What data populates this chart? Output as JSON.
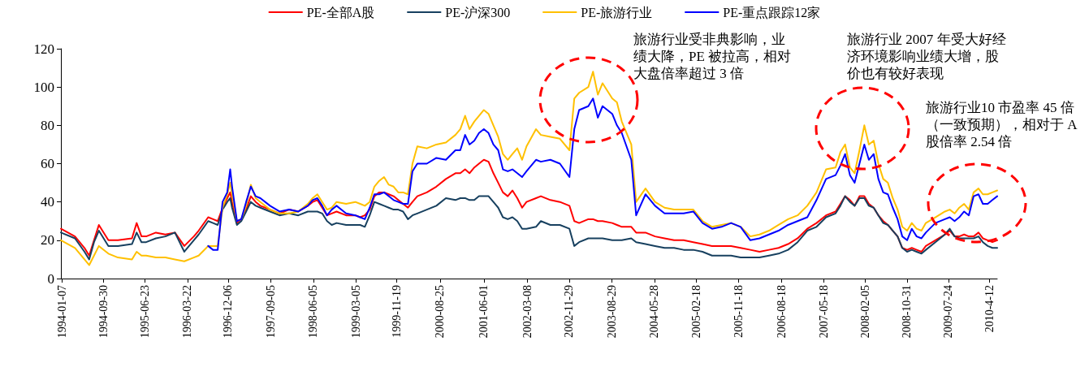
{
  "chart_data": {
    "type": "line",
    "legend": "top",
    "marker": "none",
    "line_style": "solid",
    "grid": false,
    "ylim": [
      0,
      120
    ],
    "yticks": [
      0,
      20,
      40,
      60,
      80,
      100,
      120
    ],
    "xlim": [
      "1994-01-01",
      "2010-06-01"
    ],
    "xticks": [
      "1994-01-07",
      "1994-09-30",
      "1995-06-23",
      "1996-03-22",
      "1996-12-06",
      "1997-09-05",
      "1998-06-05",
      "1999-03-05",
      "1999-11-19",
      "2000-08-25",
      "2001-06-01",
      "2002-03-08",
      "2002-11-29",
      "2003-08-29",
      "2004-05-28",
      "2005-02-18",
      "2005-11-18",
      "2006-08-18",
      "2007-05-18",
      "2008-02-05",
      "2008-10-31",
      "2009-07-24",
      {
        "value": "2010-04-12",
        "label": "2010-4-12"
      }
    ],
    "x": [
      "1994-01",
      "1994-04",
      "1994-06",
      "1994-07",
      "1994-08",
      "1994-09",
      "1994-11",
      "1995-01",
      "1995-04",
      "1995-05",
      "1995-06",
      "1995-07",
      "1995-09",
      "1995-11",
      "1996-01",
      "1996-03",
      "1996-05",
      "1996-06",
      "1996-08",
      "1996-09",
      "1996-10",
      "1996-11",
      "1996-12",
      "1996-12-20",
      "1997-01",
      "1997-02",
      "1997-03",
      "1997-04",
      "1997-05",
      "1997-06",
      "1997-07",
      "1997-09",
      "1997-11",
      "1998-01",
      "1998-03",
      "1998-05",
      "1998-06",
      "1998-07",
      "1998-08",
      "1998-09",
      "1998-10",
      "1998-11",
      "1999-01",
      "1999-03",
      "1999-04",
      "1999-05",
      "1999-06",
      "1999-07",
      "1999-08",
      "1999-09",
      "1999-10",
      "1999-11",
      "1999-12",
      "2000-01",
      "2000-02",
      "2000-03",
      "2000-04",
      "2000-06",
      "2000-08",
      "2000-10",
      "2000-12",
      "2001-01",
      "2001-02",
      "2001-03",
      "2001-04",
      "2001-05",
      "2001-06",
      "2001-07",
      "2001-08",
      "2001-09",
      "2001-10",
      "2001-11",
      "2001-12",
      "2002-01",
      "2002-02",
      "2002-03",
      "2002-05",
      "2002-06",
      "2002-08",
      "2002-10",
      "2002-12",
      "2003-01",
      "2003-02",
      "2003-04",
      "2003-05",
      "2003-06",
      "2003-07",
      "2003-09",
      "2003-10",
      "2003-11",
      "2004-01",
      "2004-02",
      "2004-04",
      "2004-06",
      "2004-08",
      "2004-10",
      "2004-12",
      "2005-02",
      "2005-04",
      "2005-06",
      "2005-08",
      "2005-10",
      "2005-12",
      "2006-02",
      "2006-04",
      "2006-06",
      "2006-08",
      "2006-10",
      "2006-12",
      "2007-02",
      "2007-04",
      "2007-06",
      "2007-08",
      "2007-09",
      "2007-10",
      "2007-11",
      "2007-12",
      "2008-01",
      "2008-02",
      "2008-03",
      "2008-04",
      "2008-05",
      "2008-06",
      "2008-07",
      "2008-08",
      "2008-09",
      "2008-10",
      "2008-11",
      "2008-12",
      "2009-01",
      "2009-02",
      "2009-03",
      "2009-05",
      "2009-07",
      "2009-08",
      "2009-09",
      "2009-10",
      "2009-11",
      "2009-12",
      "2010-01",
      "2010-02",
      "2010-03",
      "2010-04",
      "2010-05",
      "2010-06"
    ],
    "series": [
      {
        "name": "PE-全部A股",
        "color": "#ff0000",
        "values": [
          26,
          22,
          16,
          12,
          20,
          28,
          20,
          20,
          21,
          29,
          22,
          22,
          24,
          23,
          24,
          17,
          22,
          25,
          32,
          31,
          30,
          37,
          42,
          45,
          40,
          29,
          31,
          36,
          43,
          40,
          38,
          36,
          34,
          36,
          35,
          38,
          40,
          41,
          37,
          33,
          34,
          35,
          33,
          33,
          32,
          33,
          36,
          43,
          45,
          45,
          44,
          43,
          41,
          39,
          37,
          40,
          43,
          45,
          48,
          52,
          55,
          55,
          57,
          55,
          58,
          60,
          62,
          61,
          55,
          50,
          45,
          43,
          46,
          42,
          37,
          40,
          42,
          43,
          41,
          40,
          38,
          30,
          29,
          31,
          31,
          30,
          30,
          29,
          28,
          27,
          27,
          24,
          24,
          22,
          21,
          20,
          20,
          19,
          18,
          17,
          17,
          17,
          16,
          15,
          14,
          15,
          16,
          18,
          21,
          26,
          29,
          33,
          35,
          39,
          43,
          41,
          38,
          43,
          43,
          39,
          37,
          33,
          30,
          28,
          25,
          22,
          16,
          15,
          16,
          15,
          14,
          17,
          20,
          23,
          25,
          22,
          22,
          23,
          22,
          22,
          24,
          21,
          20,
          19,
          20
        ]
      },
      {
        "name": "PE-沪深300",
        "color": "#17405f",
        "values": [
          24,
          21,
          14,
          10,
          19,
          25,
          17,
          17,
          18,
          24,
          19,
          19,
          21,
          22,
          24,
          14,
          20,
          23,
          30,
          29,
          28,
          36,
          40,
          42,
          37,
          28,
          30,
          35,
          40,
          38,
          37,
          35,
          33,
          34,
          33,
          35,
          35,
          35,
          34,
          30,
          28,
          29,
          28,
          28,
          28,
          27,
          33,
          40,
          39,
          38,
          37,
          36,
          36,
          35,
          31,
          33,
          34,
          36,
          38,
          42,
          41,
          42,
          42,
          41,
          41,
          43,
          43,
          43,
          40,
          37,
          32,
          31,
          32,
          30,
          26,
          26,
          27,
          30,
          28,
          28,
          26,
          17,
          19,
          21,
          21,
          21,
          21,
          20,
          20,
          20,
          21,
          19,
          18,
          17,
          16,
          16,
          15,
          15,
          14,
          12,
          12,
          12,
          11,
          11,
          11,
          12,
          13,
          15,
          19,
          25,
          27,
          32,
          34,
          38,
          43,
          40,
          38,
          42,
          42,
          38,
          37,
          33,
          29,
          28,
          25,
          22,
          16,
          14,
          15,
          14,
          13,
          15,
          19,
          23,
          26,
          22,
          21,
          21,
          21,
          21,
          22,
          19,
          17,
          16,
          16
        ]
      },
      {
        "name": "PE-旅游行业",
        "color": "#ffc000",
        "values": [
          20,
          16,
          10,
          7,
          12,
          17,
          13,
          11,
          10,
          14,
          12,
          12,
          11,
          11,
          10,
          9,
          11,
          12,
          17,
          17,
          17,
          37,
          44,
          50,
          44,
          30,
          31,
          38,
          49,
          42,
          40,
          36,
          34,
          34,
          35,
          39,
          42,
          44,
          40,
          36,
          37,
          40,
          39,
          40,
          39,
          38,
          40,
          48,
          51,
          53,
          49,
          48,
          45,
          45,
          44,
          60,
          69,
          68,
          70,
          71,
          75,
          78,
          85,
          78,
          82,
          85,
          88,
          86,
          80,
          74,
          65,
          62,
          65,
          68,
          62,
          69,
          78,
          75,
          74,
          73,
          67,
          94,
          97,
          100,
          108,
          96,
          102,
          94,
          92,
          82,
          70,
          40,
          47,
          40,
          37,
          36,
          36,
          36,
          30,
          27,
          28,
          29,
          27,
          22,
          23,
          25,
          28,
          31,
          33,
          38,
          45,
          57,
          58,
          66,
          70,
          58,
          55,
          67,
          80,
          70,
          72,
          60,
          52,
          50,
          42,
          36,
          27,
          25,
          29,
          26,
          25,
          29,
          32,
          35,
          36,
          34,
          37,
          39,
          36,
          45,
          47,
          44,
          44,
          45,
          46
        ]
      },
      {
        "name": "PE-重点跟踪12家",
        "color": "#0000ff",
        "values": [
          null,
          null,
          null,
          null,
          null,
          null,
          null,
          null,
          null,
          null,
          null,
          null,
          null,
          null,
          null,
          null,
          null,
          null,
          17,
          15,
          15,
          40,
          45,
          57,
          48,
          30,
          31,
          40,
          48,
          43,
          42,
          38,
          35,
          36,
          35,
          38,
          41,
          42,
          38,
          33,
          36,
          38,
          34,
          33,
          32,
          31,
          37,
          44,
          44,
          45,
          43,
          41,
          40,
          39,
          39,
          56,
          60,
          60,
          63,
          62,
          67,
          67,
          75,
          70,
          72,
          76,
          78,
          76,
          70,
          67,
          57,
          56,
          57,
          55,
          53,
          56,
          62,
          61,
          62,
          60,
          53,
          78,
          88,
          90,
          94,
          84,
          90,
          86,
          80,
          76,
          62,
          33,
          44,
          38,
          34,
          34,
          34,
          35,
          29,
          26,
          27,
          29,
          27,
          20,
          21,
          23,
          25,
          28,
          30,
          32,
          41,
          52,
          54,
          59,
          65,
          54,
          50,
          60,
          70,
          62,
          65,
          52,
          45,
          44,
          37,
          31,
          22,
          20,
          26,
          22,
          21,
          24,
          29,
          31,
          32,
          30,
          32,
          35,
          33,
          43,
          44,
          39,
          39,
          41,
          43
        ]
      }
    ],
    "annotations": [
      "旅游行业受非典影响，业绩大降，PE 被拉高，相对大盘倍率超过 3 倍",
      "旅游行业 2007 年受大好经济环境影响业绩大增，股价也有较好表现",
      "旅游行业10 市盈率 45 倍（一致预期），相对于 A 股倍率 2.54 倍"
    ]
  }
}
